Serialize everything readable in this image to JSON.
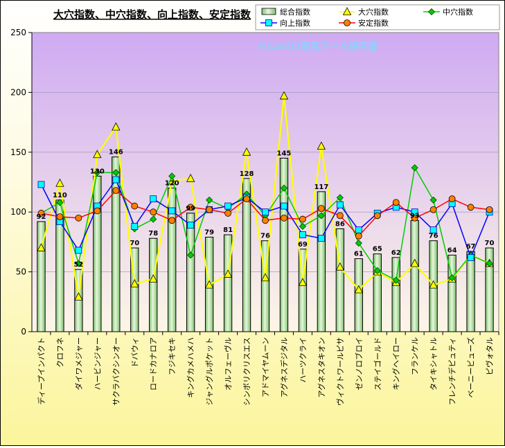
{
  "watermark": "©Caniの競馬データ研究室",
  "chart_data": {
    "type": "bar",
    "title": "大穴指数、中穴指数、向上指数、安定指数",
    "ylim": [
      0,
      250
    ],
    "yticks": [
      0,
      50,
      100,
      150,
      200,
      250
    ],
    "categories": [
      "ディープインパクト",
      "クロフネ",
      "ダイワメジャー",
      "ハービンジャー",
      "サクラバクシンオー",
      "ドバウィ",
      "ロードカナロア",
      "フジキセキ",
      "キングカメハメハ",
      "ジャングルポケット",
      "オルフェーヴル",
      "シンボリクリスエス",
      "アドマイヤムーン",
      "アグネスデジタル",
      "ハーツクライ",
      "アグネスタキオン",
      "ヴィクトワールピサ",
      "ゼンノロブロイ",
      "ステイゴールド",
      "キングヘイロー",
      "フランケル",
      "タイキシャトル",
      "フレンチデピュティ",
      "ベーニービューズ",
      "ピヴォタル"
    ],
    "series": [
      {
        "name": "総合指数",
        "type": "bar",
        "color": "#a6dc96",
        "values": [
          92,
          110,
          52,
          130,
          146,
          70,
          78,
          120,
          99,
          79,
          81,
          128,
          76,
          145,
          69,
          117,
          86,
          61,
          65,
          62,
          93,
          76,
          64,
          67,
          70
        ]
      },
      {
        "name": "大穴指数",
        "type": "line",
        "color": "#ffff00",
        "marker": "triangle",
        "values": [
          70,
          124,
          29,
          148,
          171,
          40,
          44,
          126,
          128,
          39,
          48,
          150,
          45,
          197,
          41,
          155,
          54,
          35,
          50,
          41,
          57,
          39,
          44,
          64,
          57
        ]
      },
      {
        "name": "中穴指数",
        "type": "line",
        "color": "#00cc00",
        "marker": "diamond",
        "values": [
          99,
          108,
          57,
          133,
          133,
          86,
          94,
          130,
          64,
          110,
          103,
          115,
          97,
          120,
          88,
          97,
          112,
          74,
          51,
          43,
          137,
          110,
          45,
          64,
          57
        ]
      },
      {
        "name": "向上指数",
        "type": "line",
        "color": "#0000ff",
        "marker": "square",
        "values": [
          123,
          92,
          68,
          105,
          127,
          88,
          111,
          101,
          89,
          102,
          105,
          112,
          100,
          105,
          81,
          78,
          106,
          85,
          99,
          104,
          100,
          85,
          107,
          62,
          100
        ]
      },
      {
        "name": "安定指数",
        "type": "line",
        "color": "#ff0000",
        "marker": "circle",
        "values": [
          99,
          96,
          95,
          101,
          118,
          105,
          100,
          93,
          104,
          102,
          99,
          111,
          93,
          95,
          94,
          103,
          97,
          80,
          97,
          108,
          95,
          102,
          111,
          104,
          102
        ]
      }
    ]
  }
}
